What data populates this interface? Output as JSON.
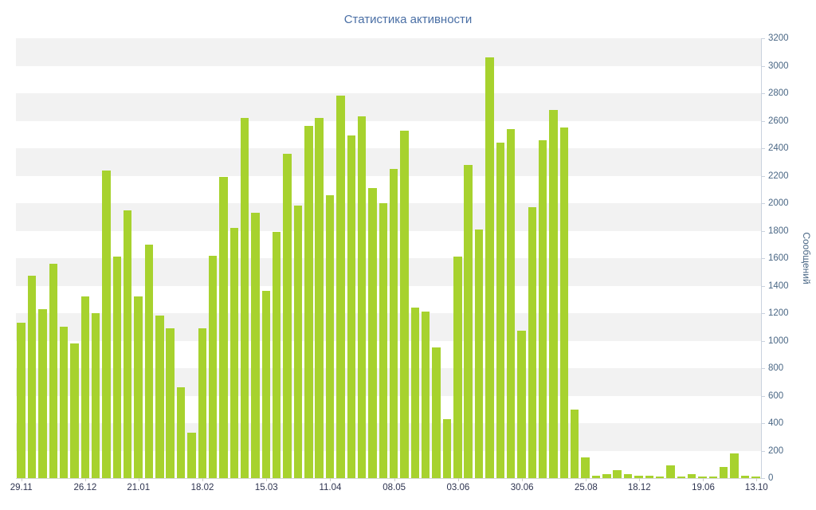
{
  "title": "Статистика активности",
  "colors": {
    "bar": "#a7d22e",
    "band": "#f2f2f2",
    "title": "#4a6fa5",
    "y_label": "#4a6785",
    "x_label": "#2e3450",
    "axis": "#c9d2de"
  },
  "chart_data": {
    "type": "bar",
    "title": "Статистика активности",
    "xlabel": "",
    "ylabel": "Сообщений",
    "ylim": [
      0,
      3200
    ],
    "ytick_step": 200,
    "grid": "alternating-horizontal-bands",
    "legend": "none",
    "bar_color": "#a7d22e",
    "x_ticks": [
      {
        "index": 0,
        "label": "29.11"
      },
      {
        "index": 6,
        "label": "26.12"
      },
      {
        "index": 11,
        "label": "21.01"
      },
      {
        "index": 17,
        "label": "18.02"
      },
      {
        "index": 23,
        "label": "15.03"
      },
      {
        "index": 29,
        "label": "11.04"
      },
      {
        "index": 35,
        "label": "08.05"
      },
      {
        "index": 41,
        "label": "03.06"
      },
      {
        "index": 47,
        "label": "30.06"
      },
      {
        "index": 53,
        "label": "25.08"
      },
      {
        "index": 58,
        "label": "18.12"
      },
      {
        "index": 64,
        "label": "19.06"
      },
      {
        "index": 69,
        "label": "13.10"
      }
    ],
    "values": [
      1130,
      1470,
      1230,
      1560,
      1100,
      980,
      1320,
      1200,
      2240,
      1610,
      1950,
      1320,
      1700,
      1180,
      1090,
      660,
      330,
      1090,
      1620,
      2190,
      1820,
      2620,
      1930,
      1360,
      1790,
      2360,
      1980,
      2560,
      2620,
      2060,
      2780,
      2490,
      2630,
      2110,
      2000,
      2250,
      2530,
      1240,
      1210,
      950,
      430,
      1610,
      2280,
      1810,
      3060,
      2440,
      2540,
      1070,
      1970,
      2460,
      2680,
      2550,
      500,
      150,
      20,
      30,
      60,
      30,
      20,
      20,
      10,
      90,
      10,
      30,
      10,
      10,
      80,
      180,
      20,
      10
    ]
  }
}
